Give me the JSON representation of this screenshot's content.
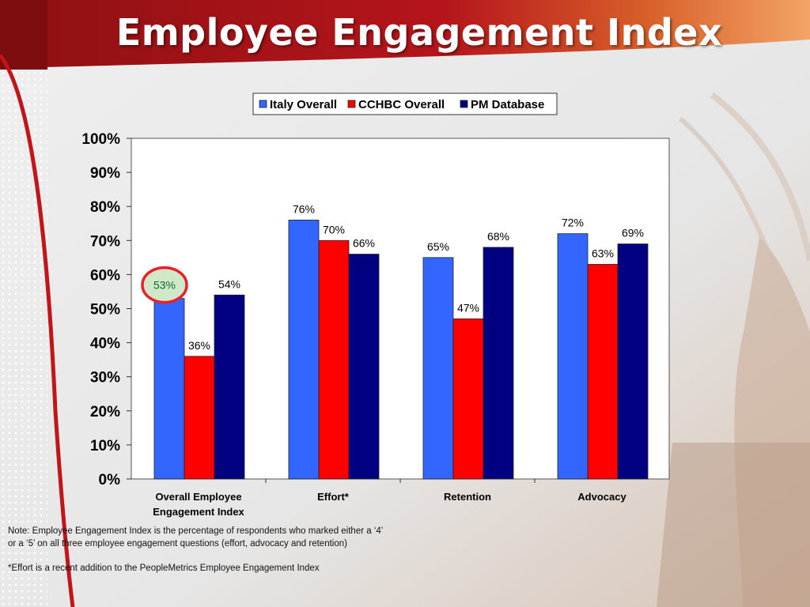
{
  "slide": {
    "title": "Employee Engagement Index",
    "note_line1": "Note: Employee Engagement Index is the percentage of respondents who marked either a ‘4’",
    "note_line2": "or a ‘5’ on all three employee engagement questions (effort, advocacy and retention)",
    "footnote": "*Effort is a recent addition to the PeopleMetrics Employee Engagement Index"
  },
  "colors": {
    "italy": "#3366ff",
    "cchbc": "#ff0000",
    "pm": "#000080",
    "highlight_circle": "#e8202a",
    "highlight_fill": "#cfe8c8"
  },
  "chart_data": {
    "type": "bar",
    "categories": [
      [
        "Overall Employee",
        "Engagement Index"
      ],
      [
        "Effort*"
      ],
      [
        "Retention"
      ],
      [
        "Advocacy"
      ]
    ],
    "series": [
      {
        "name": "Italy Overall",
        "values": [
          53,
          76,
          65,
          72
        ],
        "labels": [
          "53%",
          "76%",
          "65%",
          "72%"
        ]
      },
      {
        "name": "CCHBC Overall",
        "values": [
          36,
          70,
          47,
          63
        ],
        "labels": [
          "36%",
          "70%",
          "47%",
          "63%"
        ]
      },
      {
        "name": "PM Database",
        "values": [
          54,
          66,
          68,
          69
        ],
        "labels": [
          "54%",
          "66%",
          "68%",
          "69%"
        ]
      }
    ],
    "yticks": [
      "0%",
      "10%",
      "20%",
      "30%",
      "40%",
      "50%",
      "60%",
      "70%",
      "80%",
      "90%",
      "100%"
    ],
    "ylim": [
      0,
      100
    ],
    "legend_position": "top",
    "highlighted": {
      "series": 0,
      "category": 0
    },
    "title": "",
    "xlabel": "",
    "ylabel": ""
  }
}
